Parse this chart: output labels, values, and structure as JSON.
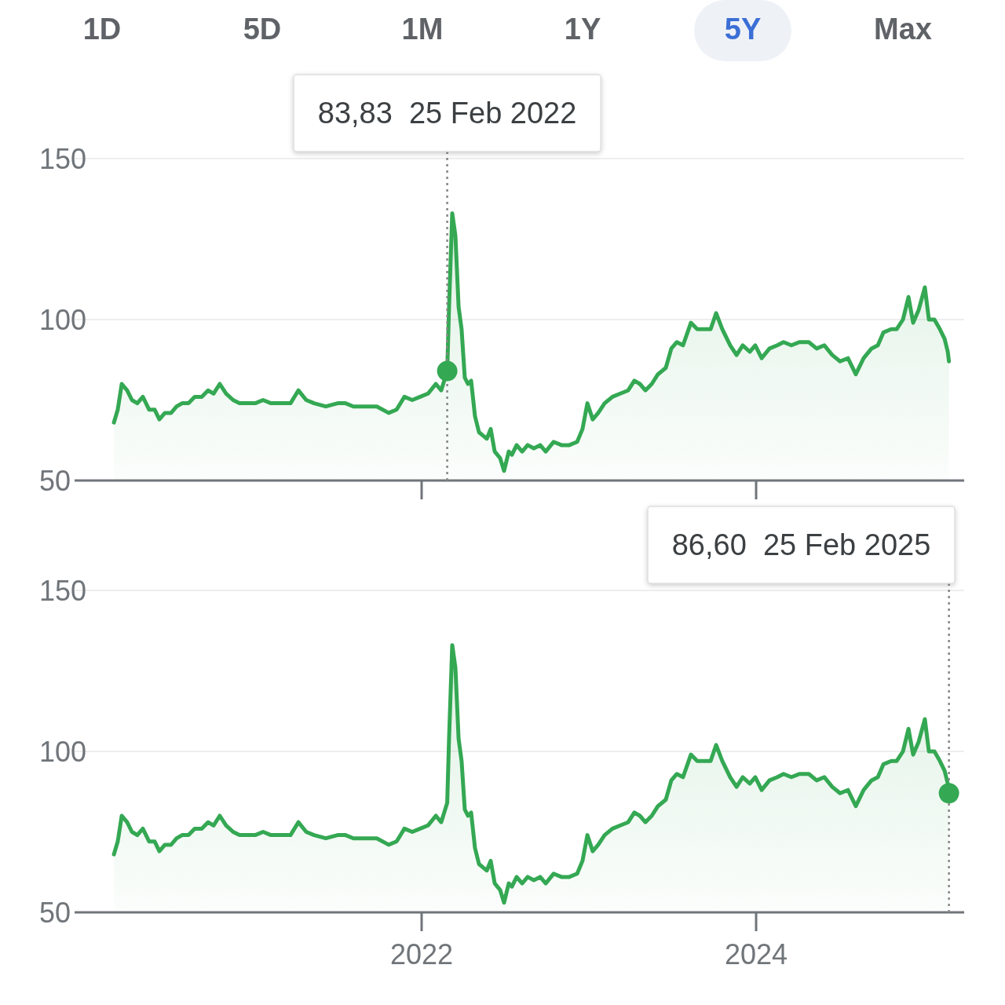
{
  "chart_data": [
    {
      "type": "area",
      "annotations": [
        "1D",
        "5D",
        "1M",
        "1Y",
        "5Y",
        "Max",
        "83,83  25 Feb 2022"
      ],
      "x": [
        2020.16,
        2020.183,
        2020.207,
        2020.239,
        2020.268,
        2020.3,
        2020.333,
        2020.371,
        2020.404,
        2020.432,
        2020.465,
        2020.502,
        2020.535,
        2020.568,
        2020.606,
        2020.643,
        2020.685,
        2020.723,
        2020.756,
        2020.793,
        2020.831,
        2020.873,
        2020.911,
        2020.958,
        2021.005,
        2021.052,
        2021.099,
        2021.146,
        2021.216,
        2021.263,
        2021.31,
        2021.357,
        2021.427,
        2021.498,
        2021.545,
        2021.592,
        2021.662,
        2021.732,
        2021.803,
        2021.85,
        2021.897,
        2021.944,
        2021.991,
        2022.038,
        2022.085,
        2022.117,
        2022.153,
        2022.164,
        2022.183,
        2022.202,
        2022.221,
        2022.239,
        2022.258,
        2022.277,
        2022.296,
        2022.319,
        2022.343,
        2022.366,
        2022.39,
        2022.413,
        2022.437,
        2022.469,
        2022.493,
        2022.521,
        2022.54,
        2022.568,
        2022.601,
        2022.634,
        2022.671,
        2022.709,
        2022.742,
        2022.789,
        2022.836,
        2022.883,
        2022.93,
        2022.962,
        2022.991,
        2023.023,
        2023.056,
        2023.094,
        2023.141,
        2023.188,
        2023.235,
        2023.272,
        2023.305,
        2023.338,
        2023.376,
        2023.413,
        2023.46,
        2023.493,
        2023.526,
        2023.563,
        2023.61,
        2023.648,
        2023.681,
        2023.728,
        2023.761,
        2023.798,
        2023.845,
        2023.883,
        2023.92,
        2023.962,
        2023.995,
        2024.033,
        2024.08,
        2024.127,
        2024.164,
        2024.211,
        2024.258,
        2024.315,
        2024.362,
        2024.408,
        2024.455,
        2024.502,
        2024.549,
        2024.596,
        2024.643,
        2024.69,
        2024.728,
        2024.761,
        2024.808,
        2024.84,
        2024.878,
        2024.911,
        2024.939,
        2024.972,
        2025.009,
        2025.033,
        2025.066,
        2025.099,
        2025.127,
        2025.146,
        2025.153
      ],
      "series": [
        {
          "color": "#34a853",
          "values": [
            68,
            72,
            80,
            78,
            75,
            74,
            76,
            72,
            72,
            69,
            71,
            71,
            73,
            74,
            74,
            76,
            76,
            78,
            77,
            80,
            77,
            75,
            74,
            74,
            74,
            75,
            74,
            74,
            74,
            78,
            75,
            74,
            73,
            74,
            74,
            73,
            73,
            73,
            71,
            72,
            76,
            75,
            76,
            77,
            80,
            78,
            84,
            104,
            133,
            126,
            104,
            97,
            82,
            80,
            81,
            70,
            65,
            64,
            63,
            66,
            59,
            57,
            53,
            59,
            58,
            61,
            59,
            61,
            60,
            61,
            59,
            62,
            61,
            61,
            62,
            66,
            74,
            69,
            71,
            74,
            76,
            77,
            78,
            81,
            80,
            78,
            80,
            83,
            85,
            91,
            93,
            92,
            99,
            97,
            97,
            97,
            102,
            97,
            92,
            89,
            92,
            90,
            92,
            88,
            91,
            92,
            93,
            92,
            93,
            93,
            91,
            92,
            89,
            87,
            88,
            83,
            88,
            91,
            92,
            96,
            97,
            97,
            100,
            107,
            99,
            103,
            110,
            100,
            100,
            97,
            94,
            90,
            87
          ]
        }
      ],
      "xlim": [
        2019.925,
        2025.244
      ],
      "xticks": [
        {
          "value": 2022,
          "label": null
        },
        {
          "value": 2024,
          "label": null
        }
      ],
      "ylim": [
        50,
        150
      ],
      "yticks": [
        50,
        100,
        150
      ],
      "grid": "y",
      "tick_labels": "y",
      "ref_lines": [
        {
          "axis": "x",
          "value": 2022.153,
          "line_style": "dotted",
          "color": "#888888"
        }
      ]
    },
    {
      "type": "area",
      "annotations": [
        "86,60  25 Feb 2025"
      ],
      "x": [
        2020.16,
        2020.183,
        2020.207,
        2020.239,
        2020.268,
        2020.3,
        2020.333,
        2020.371,
        2020.404,
        2020.432,
        2020.465,
        2020.502,
        2020.535,
        2020.568,
        2020.606,
        2020.643,
        2020.685,
        2020.723,
        2020.756,
        2020.793,
        2020.831,
        2020.873,
        2020.911,
        2020.958,
        2021.005,
        2021.052,
        2021.099,
        2021.146,
        2021.216,
        2021.263,
        2021.31,
        2021.357,
        2021.427,
        2021.498,
        2021.545,
        2021.592,
        2021.662,
        2021.732,
        2021.803,
        2021.85,
        2021.897,
        2021.944,
        2021.991,
        2022.038,
        2022.085,
        2022.117,
        2022.153,
        2022.164,
        2022.183,
        2022.202,
        2022.221,
        2022.239,
        2022.258,
        2022.277,
        2022.296,
        2022.319,
        2022.343,
        2022.366,
        2022.39,
        2022.413,
        2022.437,
        2022.469,
        2022.493,
        2022.521,
        2022.54,
        2022.568,
        2022.601,
        2022.634,
        2022.671,
        2022.709,
        2022.742,
        2022.789,
        2022.836,
        2022.883,
        2022.93,
        2022.962,
        2022.991,
        2023.023,
        2023.056,
        2023.094,
        2023.141,
        2023.188,
        2023.235,
        2023.272,
        2023.305,
        2023.338,
        2023.376,
        2023.413,
        2023.46,
        2023.493,
        2023.526,
        2023.563,
        2023.61,
        2023.648,
        2023.681,
        2023.728,
        2023.761,
        2023.798,
        2023.845,
        2023.883,
        2023.92,
        2023.962,
        2023.995,
        2024.033,
        2024.08,
        2024.127,
        2024.164,
        2024.211,
        2024.258,
        2024.315,
        2024.362,
        2024.408,
        2024.455,
        2024.502,
        2024.549,
        2024.596,
        2024.643,
        2024.69,
        2024.728,
        2024.761,
        2024.808,
        2024.84,
        2024.878,
        2024.911,
        2024.939,
        2024.972,
        2025.009,
        2025.033,
        2025.066,
        2025.099,
        2025.127,
        2025.146,
        2025.153
      ],
      "series": [
        {
          "color": "#34a853",
          "values": [
            68,
            72,
            80,
            78,
            75,
            74,
            76,
            72,
            72,
            69,
            71,
            71,
            73,
            74,
            74,
            76,
            76,
            78,
            77,
            80,
            77,
            75,
            74,
            74,
            74,
            75,
            74,
            74,
            74,
            78,
            75,
            74,
            73,
            74,
            74,
            73,
            73,
            73,
            71,
            72,
            76,
            75,
            76,
            77,
            80,
            78,
            84,
            104,
            133,
            126,
            104,
            97,
            82,
            80,
            81,
            70,
            65,
            64,
            63,
            66,
            59,
            57,
            53,
            59,
            58,
            61,
            59,
            61,
            60,
            61,
            59,
            62,
            61,
            61,
            62,
            66,
            74,
            69,
            71,
            74,
            76,
            77,
            78,
            81,
            80,
            78,
            80,
            83,
            85,
            91,
            93,
            92,
            99,
            97,
            97,
            97,
            102,
            97,
            92,
            89,
            92,
            90,
            92,
            88,
            91,
            92,
            93,
            92,
            93,
            93,
            91,
            92,
            89,
            87,
            88,
            83,
            88,
            91,
            92,
            96,
            97,
            97,
            100,
            107,
            99,
            103,
            110,
            100,
            100,
            97,
            94,
            90,
            87
          ]
        }
      ],
      "xlim": [
        2019.925,
        2025.244
      ],
      "xticks": [
        2022,
        2024
      ],
      "ylim": [
        50,
        150
      ],
      "yticks": [
        50,
        100,
        150
      ],
      "grid": "y",
      "ref_lines": [
        {
          "axis": "x",
          "value": 2025.153,
          "line_style": "dotted",
          "color": "#888888"
        }
      ]
    }
  ]
}
